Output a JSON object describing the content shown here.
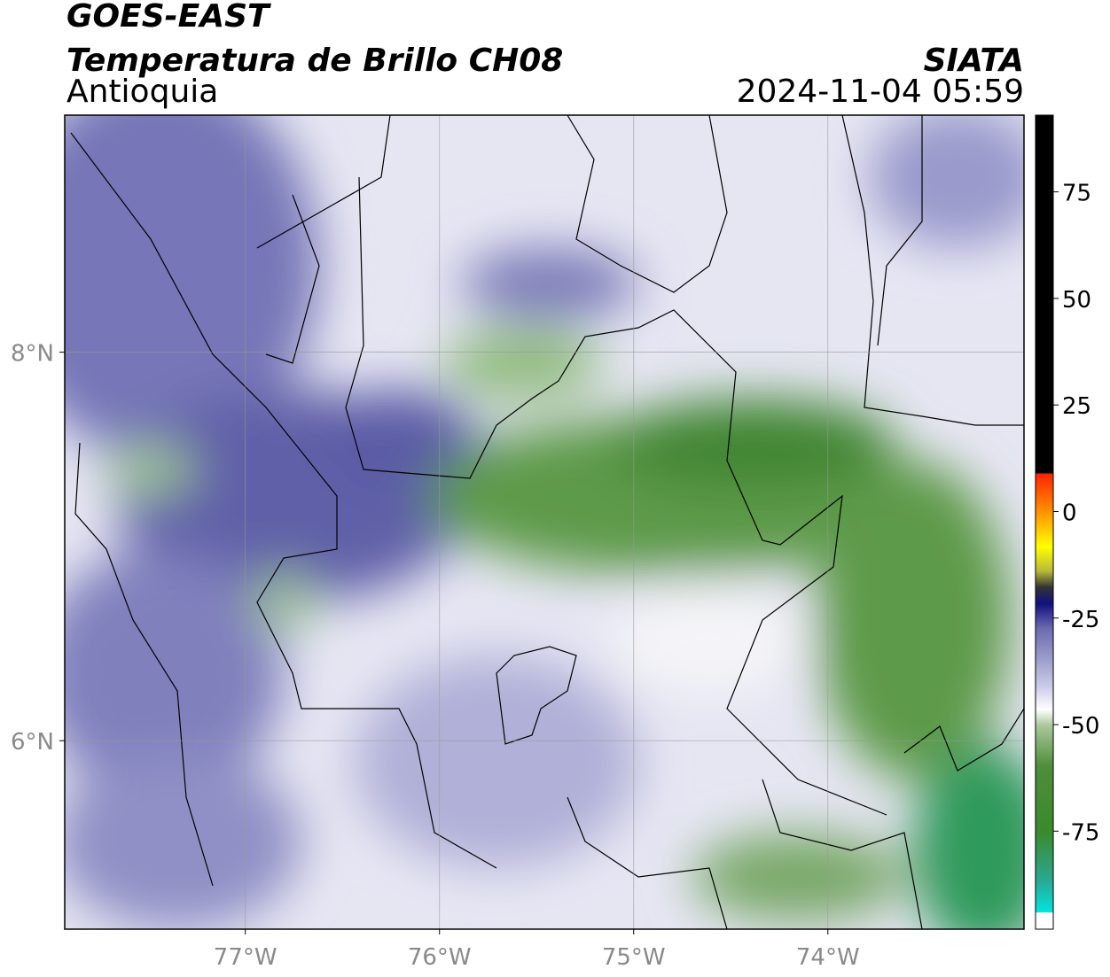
{
  "header": {
    "satellite": "GOES-EAST",
    "product": "Temperatura de Brillo CH08",
    "region": "Antioquia",
    "source": "SIATA",
    "datetime": "2024-11-04 05:59"
  },
  "map": {
    "xlim": [
      -77.93,
      -72.99
    ],
    "ylim": [
      5.03,
      9.22
    ],
    "xticks": [
      {
        "value": -77,
        "label": "77°W"
      },
      {
        "value": -76,
        "label": "76°W"
      },
      {
        "value": -75,
        "label": "75°W"
      },
      {
        "value": -74,
        "label": "74°W"
      }
    ],
    "yticks": [
      {
        "value": 8,
        "label": "8°N"
      },
      {
        "value": 6,
        "label": "6°N"
      }
    ],
    "grid": true
  },
  "colorbar": {
    "lim": [
      -98,
      93
    ],
    "ticks": [
      75,
      50,
      25,
      0,
      -25,
      -50,
      -75
    ]
  }
}
